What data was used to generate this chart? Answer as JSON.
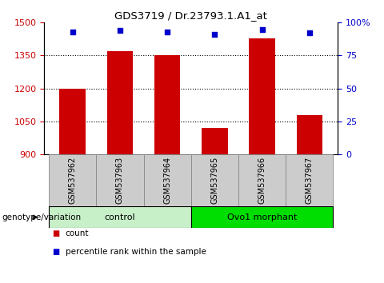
{
  "title": "GDS3719 / Dr.23793.1.A1_at",
  "categories": [
    "GSM537962",
    "GSM537963",
    "GSM537964",
    "GSM537965",
    "GSM537966",
    "GSM537967"
  ],
  "counts": [
    1200,
    1370,
    1350,
    1020,
    1430,
    1080
  ],
  "percentiles": [
    93,
    94,
    93,
    91,
    95,
    92
  ],
  "ylim_left": [
    900,
    1500
  ],
  "ylim_right": [
    0,
    100
  ],
  "yticks_left": [
    900,
    1050,
    1200,
    1350,
    1500
  ],
  "yticks_right": [
    0,
    25,
    50,
    75,
    100
  ],
  "ytick_labels_left": [
    "900",
    "1050",
    "1200",
    "1350",
    "1500"
  ],
  "ytick_labels_right": [
    "0",
    "25",
    "50",
    "75",
    "100%"
  ],
  "bar_color": "#cc0000",
  "dot_color": "#0000cc",
  "bar_width": 0.55,
  "groups": [
    {
      "label": "control",
      "indices": [
        0,
        1,
        2
      ],
      "color": "#c8f0c8"
    },
    {
      "label": "Ovo1 morphant",
      "indices": [
        3,
        4,
        5
      ],
      "color": "#00dd00"
    }
  ],
  "xlabel_bottom": "genotype/variation",
  "legend_count_label": "count",
  "legend_pct_label": "percentile rank within the sample",
  "grid_style": "dotted",
  "tick_color_left": "#cc0000",
  "tick_color_right": "#0000cc",
  "sample_box_color": "#cccccc",
  "title_fontsize": 9.5
}
